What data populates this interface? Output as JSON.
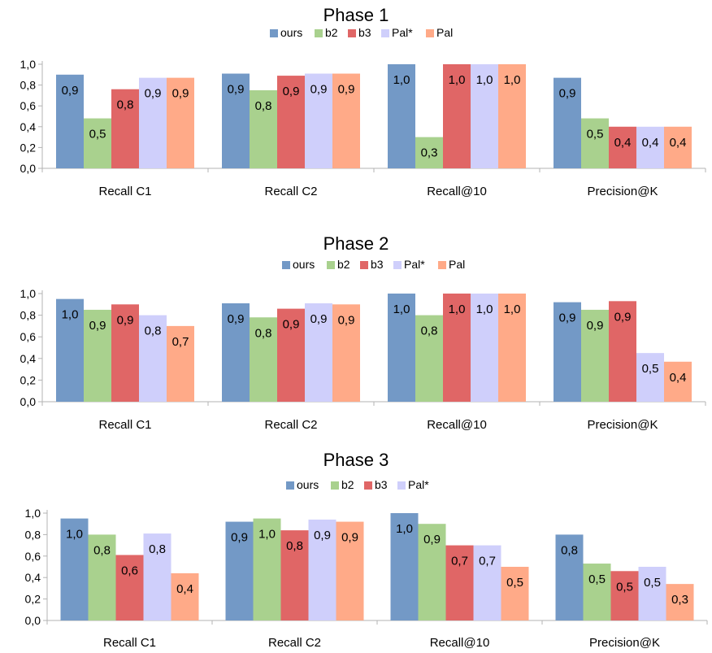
{
  "chart_data": [
    {
      "type": "bar",
      "title": "Phase 1",
      "categories": [
        "Recall C1",
        "Recall C2",
        "Recall@10",
        "Precision@K"
      ],
      "series": [
        {
          "name": "ours",
          "color": "#7399c6",
          "values": [
            0.9,
            0.91,
            1.0,
            0.87
          ],
          "labels": [
            "0,9",
            "0,9",
            "1,0",
            "0,9"
          ]
        },
        {
          "name": "b2",
          "color": "#a9d18e",
          "values": [
            0.48,
            0.75,
            0.3,
            0.48
          ],
          "labels": [
            "0,5",
            "0,8",
            "0,3",
            "0,5"
          ]
        },
        {
          "name": "b3",
          "color": "#e06666",
          "values": [
            0.76,
            0.89,
            1.0,
            0.4
          ],
          "labels": [
            "0,8",
            "0,9",
            "1,0",
            "0,4"
          ]
        },
        {
          "name": "Pal*",
          "color": "#cfcffb",
          "values": [
            0.87,
            0.91,
            1.0,
            0.4
          ],
          "labels": [
            "0,9",
            "0,9",
            "1,0",
            "0,4"
          ]
        },
        {
          "name": "Pal",
          "color": "#ffaa88",
          "values": [
            0.87,
            0.91,
            1.0,
            0.4
          ],
          "labels": [
            "0,9",
            "0,9",
            "1,0",
            "0,4"
          ]
        }
      ],
      "ylim": [
        0,
        1.0
      ],
      "yticks": [
        "0,0",
        "0,2",
        "0,4",
        "0,6",
        "0,8",
        "1,0"
      ],
      "legend": "top"
    },
    {
      "type": "bar",
      "title": "Phase 2",
      "categories": [
        "Recall C1",
        "Recall C2",
        "Recall@10",
        "Precision@K"
      ],
      "series": [
        {
          "name": "ours",
          "color": "#7399c6",
          "values": [
            0.95,
            0.91,
            1.0,
            0.92
          ],
          "labels": [
            "1,0",
            "0,9",
            "1,0",
            "0,9"
          ]
        },
        {
          "name": "b2",
          "color": "#a9d18e",
          "values": [
            0.85,
            0.78,
            0.8,
            0.85
          ],
          "labels": [
            "0,9",
            "0,8",
            "0,8",
            "0,9"
          ]
        },
        {
          "name": "b3",
          "color": "#e06666",
          "values": [
            0.9,
            0.86,
            1.0,
            0.93
          ],
          "labels": [
            "0,9",
            "0,9",
            "1,0",
            "0,9"
          ]
        },
        {
          "name": "Pal*",
          "color": "#cfcffb",
          "values": [
            0.8,
            0.91,
            1.0,
            0.45
          ],
          "labels": [
            "0,8",
            "0,9",
            "1,0",
            "0,5"
          ]
        },
        {
          "name": "Pal",
          "color": "#ffaa88",
          "values": [
            0.7,
            0.9,
            1.0,
            0.37
          ],
          "labels": [
            "0,7",
            "0,9",
            "1,0",
            "0,4"
          ]
        }
      ],
      "ylim": [
        0,
        1.0
      ],
      "yticks": [
        "0,0",
        "0,2",
        "0,4",
        "0,6",
        "0,8",
        "1,0"
      ],
      "legend": "top"
    },
    {
      "type": "bar",
      "title": "Phase 3",
      "categories": [
        "Recall C1",
        "Recall C2",
        "Recall@10",
        "Precision@K"
      ],
      "series": [
        {
          "name": "ours",
          "color": "#7399c6",
          "values": [
            0.95,
            0.92,
            1.0,
            0.8
          ],
          "labels": [
            "1,0",
            "0,9",
            "1,0",
            "0,8"
          ]
        },
        {
          "name": "b2",
          "color": "#a9d18e",
          "values": [
            0.8,
            0.95,
            0.9,
            0.53
          ],
          "labels": [
            "0,8",
            "1,0",
            "0,9",
            "0,5"
          ]
        },
        {
          "name": "b3",
          "color": "#e06666",
          "values": [
            0.61,
            0.84,
            0.7,
            0.46
          ],
          "labels": [
            "0,6",
            "0,8",
            "0,7",
            "0,5"
          ]
        },
        {
          "name": "Pal*",
          "color": "#cfcffb",
          "values": [
            0.81,
            0.94,
            0.7,
            0.5
          ],
          "labels": [
            "0,8",
            "0,9",
            "0,7",
            "0,5"
          ]
        },
        {
          "name": "",
          "color": "#ffaa88",
          "values": [
            0.44,
            0.92,
            0.5,
            0.34
          ],
          "labels": [
            "0,4",
            "0,9",
            "0,5",
            "0,3"
          ]
        }
      ],
      "legend_series": [
        "ours",
        "b2",
        "b3",
        "Pal*"
      ],
      "ylim": [
        0,
        1.0
      ],
      "yticks": [
        "0,0",
        "0,2",
        "0,4",
        "0,6",
        "0,8",
        "1,0"
      ],
      "legend": "top"
    }
  ]
}
